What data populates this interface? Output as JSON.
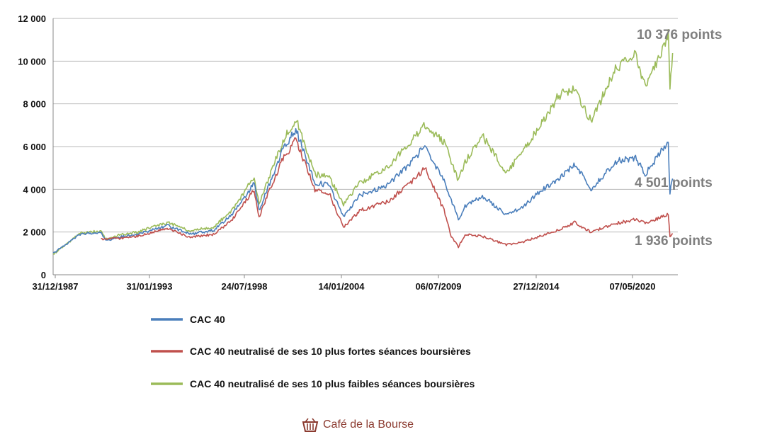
{
  "chart_data": {
    "type": "line",
    "title": "",
    "xlabel": "",
    "ylabel": "",
    "ylim": [
      0,
      12000
    ],
    "y_ticks": [
      0,
      2000,
      4000,
      6000,
      8000,
      10000,
      12000
    ],
    "y_tick_labels": [
      "0",
      "2 000",
      "4 000",
      "6 000",
      "8 000",
      "10 000",
      "12 000"
    ],
    "x_tick_labels": [
      "31/12/1987",
      "31/01/1993",
      "24/07/1998",
      "14/01/2004",
      "06/07/2009",
      "27/12/2014",
      "07/05/2020"
    ],
    "grid": true,
    "legend_position": "bottom",
    "series": [
      {
        "name": "CAC 40",
        "color": "#4a7ebb",
        "points": [
          [
            "1987-12-31",
            1000
          ],
          [
            "1989-06-01",
            1900
          ],
          [
            "1990-07-01",
            2000
          ],
          [
            "1990-10-01",
            1600
          ],
          [
            "1991-06-01",
            1750
          ],
          [
            "1992-06-01",
            1900
          ],
          [
            "1993-06-01",
            2150
          ],
          [
            "1994-01-01",
            2300
          ],
          [
            "1995-03-01",
            1900
          ],
          [
            "1996-06-01",
            2100
          ],
          [
            "1997-06-01",
            2900
          ],
          [
            "1998-07-01",
            4300
          ],
          [
            "1998-10-01",
            3000
          ],
          [
            "1999-06-01",
            4500
          ],
          [
            "2000-01-01",
            5900
          ],
          [
            "2000-09-01",
            6800
          ],
          [
            "2001-09-01",
            4300
          ],
          [
            "2002-06-01",
            4200
          ],
          [
            "2003-03-01",
            2700
          ],
          [
            "2004-01-01",
            3700
          ],
          [
            "2005-06-01",
            4200
          ],
          [
            "2006-06-01",
            5000
          ],
          [
            "2007-06-01",
            6000
          ],
          [
            "2008-06-01",
            4400
          ],
          [
            "2009-03-01",
            2600
          ],
          [
            "2009-07-06",
            3200
          ],
          [
            "2010-06-01",
            3700
          ],
          [
            "2011-09-01",
            2800
          ],
          [
            "2012-06-01",
            3100
          ],
          [
            "2013-06-01",
            3900
          ],
          [
            "2014-06-01",
            4500
          ],
          [
            "2015-04-01",
            5200
          ],
          [
            "2016-02-01",
            4000
          ],
          [
            "2017-06-01",
            5300
          ],
          [
            "2018-06-01",
            5500
          ],
          [
            "2018-12-01",
            4700
          ],
          [
            "2019-12-01",
            6000
          ],
          [
            "2020-02-15",
            6050
          ],
          [
            "2020-03-18",
            3800
          ],
          [
            "2020-05-07",
            4501
          ]
        ]
      },
      {
        "name": "CAC 40 neutralisé de ses 10 plus fortes séances boursières",
        "color": "#c0504d",
        "points": [
          [
            "1990-07-01",
            1650
          ],
          [
            "1991-06-01",
            1700
          ],
          [
            "1992-06-01",
            1800
          ],
          [
            "1993-06-01",
            2050
          ],
          [
            "1994-01-01",
            2150
          ],
          [
            "1995-03-01",
            1750
          ],
          [
            "1996-06-01",
            1900
          ],
          [
            "1997-06-01",
            2650
          ],
          [
            "1998-07-01",
            4000
          ],
          [
            "1998-10-01",
            2700
          ],
          [
            "1999-06-01",
            4200
          ],
          [
            "2000-01-01",
            5400
          ],
          [
            "2000-09-01",
            6300
          ],
          [
            "2001-09-01",
            4000
          ],
          [
            "2002-06-01",
            3800
          ],
          [
            "2003-03-01",
            2200
          ],
          [
            "2004-01-01",
            3000
          ],
          [
            "2005-06-01",
            3400
          ],
          [
            "2006-06-01",
            4100
          ],
          [
            "2007-06-01",
            5000
          ],
          [
            "2008-06-01",
            3000
          ],
          [
            "2008-10-15",
            1800
          ],
          [
            "2009-03-01",
            1300
          ],
          [
            "2009-07-06",
            1900
          ],
          [
            "2010-06-01",
            1800
          ],
          [
            "2011-09-01",
            1400
          ],
          [
            "2012-06-01",
            1500
          ],
          [
            "2013-06-01",
            1800
          ],
          [
            "2014-06-01",
            2100
          ],
          [
            "2015-04-01",
            2450
          ],
          [
            "2016-02-01",
            2000
          ],
          [
            "2017-06-01",
            2400
          ],
          [
            "2018-06-01",
            2600
          ],
          [
            "2018-12-01",
            2400
          ],
          [
            "2019-12-01",
            2750
          ],
          [
            "2020-02-15",
            2800
          ],
          [
            "2020-03-18",
            1750
          ],
          [
            "2020-05-07",
            1936
          ]
        ]
      },
      {
        "name": "CAC 40 neutralisé de ses 10 plus faibles séances boursières",
        "color": "#9bbb59",
        "points": [
          [
            "1987-12-31",
            950
          ],
          [
            "1989-06-01",
            1950
          ],
          [
            "1990-07-01",
            2050
          ],
          [
            "1990-10-01",
            1650
          ],
          [
            "1991-06-01",
            1850
          ],
          [
            "1992-06-01",
            2000
          ],
          [
            "1993-06-01",
            2300
          ],
          [
            "1994-01-01",
            2450
          ],
          [
            "1995-03-01",
            2050
          ],
          [
            "1996-06-01",
            2250
          ],
          [
            "1997-06-01",
            3100
          ],
          [
            "1998-07-01",
            4600
          ],
          [
            "1998-10-01",
            3300
          ],
          [
            "1999-06-01",
            4900
          ],
          [
            "2000-01-01",
            6300
          ],
          [
            "2000-09-01",
            7300
          ],
          [
            "2001-09-01",
            4700
          ],
          [
            "2002-06-01",
            4600
          ],
          [
            "2003-03-01",
            3300
          ],
          [
            "2004-01-01",
            4300
          ],
          [
            "2005-06-01",
            5000
          ],
          [
            "2006-06-01",
            6000
          ],
          [
            "2007-06-01",
            7000
          ],
          [
            "2008-06-01",
            6200
          ],
          [
            "2009-03-01",
            4400
          ],
          [
            "2009-07-06",
            5300
          ],
          [
            "2010-06-01",
            6500
          ],
          [
            "2011-09-01",
            4800
          ],
          [
            "2012-06-01",
            5600
          ],
          [
            "2013-06-01",
            7000
          ],
          [
            "2014-06-01",
            8400
          ],
          [
            "2015-04-01",
            8700
          ],
          [
            "2016-02-01",
            7200
          ],
          [
            "2017-06-01",
            9700
          ],
          [
            "2018-06-01",
            10300
          ],
          [
            "2018-12-01",
            8800
          ],
          [
            "2019-12-01",
            10700
          ],
          [
            "2020-02-15",
            11300
          ],
          [
            "2020-03-18",
            8700
          ],
          [
            "2020-05-07",
            10376
          ]
        ]
      }
    ],
    "end_labels": [
      "10 376 points",
      "4 501 points",
      "1 936 points"
    ]
  },
  "brand": {
    "name": "Café de la Bourse",
    "icon": "basket-icon"
  }
}
